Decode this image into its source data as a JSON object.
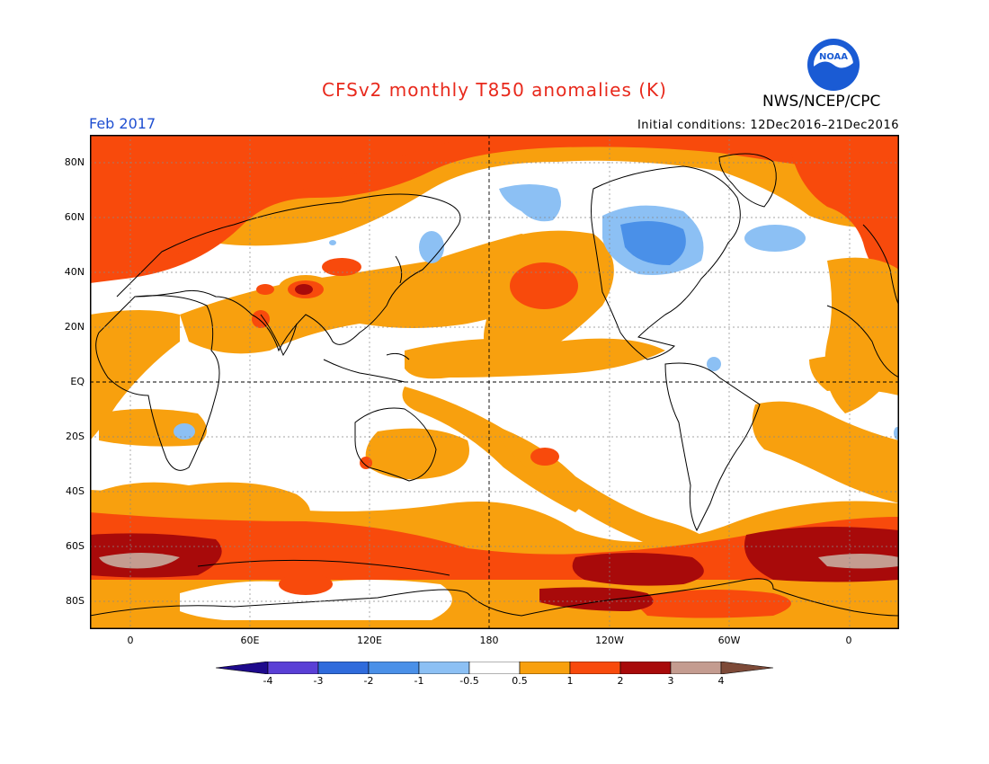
{
  "header": {
    "title": "CFSv2 monthly T850 anomalies (K)",
    "agency": "NWS/NCEP/CPC",
    "logo_text": "NOAA",
    "period": "Feb 2017",
    "initial_conditions": "Initial conditions: 12Dec2016–21Dec2016"
  },
  "axes": {
    "y_ticks": [
      "80N",
      "60N",
      "40N",
      "20N",
      "EQ",
      "20S",
      "40S",
      "60S",
      "80S"
    ],
    "x_ticks": [
      "0",
      "60E",
      "120E",
      "180",
      "120W",
      "60W",
      "0"
    ]
  },
  "colorbar": {
    "labels": [
      "-4",
      "-3",
      "-2",
      "-1",
      "-0.5",
      "0.5",
      "1",
      "2",
      "3",
      "4"
    ],
    "colors": [
      "#1e0a8c",
      "#5a3fd6",
      "#2f6bdc",
      "#4a90e8",
      "#8cc0f4",
      "#ffffff",
      "#f8a00e",
      "#f84a0c",
      "#a80a0a",
      "#c49c90",
      "#7d4a38"
    ]
  },
  "map_colors": {
    "background": "#ffffff",
    "weak_warm": "#f8a00e",
    "warm": "#f84a0c",
    "strong_warm": "#a80a0a",
    "very_strong_warm": "#c49c90",
    "weak_cool": "#8cc0f4",
    "cool": "#4a90e8",
    "coast": "#000000"
  }
}
